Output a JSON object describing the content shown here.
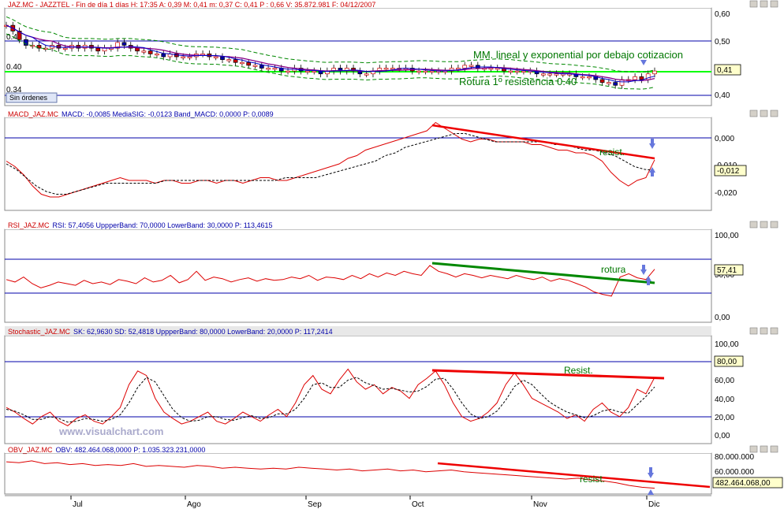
{
  "colors": {
    "price_line": "#00ff00",
    "level_line": "#0000aa",
    "macd": "#dd0000",
    "signal": "#000000",
    "trend_red": "#ee0000",
    "trend_green": "#008800",
    "annotation_green": "#007700",
    "arrow_blue": "#6677dd",
    "header_red": "#cc0000",
    "header_blue": "#0000aa",
    "watermark": "#aaaacc"
  },
  "panels": {
    "price": {
      "header": "JAZ.MC - JAZZTEL - Fin de día 1 días  H: 17:35  A: 0,39  M: 0,41  m: 0,37  C: 0,41  P : 0,66  V: 35.872.981  F: 04/12/2007",
      "ticks": [
        "0,60",
        "0,50",
        "0,40"
      ],
      "left_labels": [
        "0.49",
        "0.40",
        "0.34"
      ],
      "box": "Sin órdenes",
      "value_box": "0,41",
      "ann1": "MM. lineal y exponential por debajo cotizacion",
      "ann2": "Rotura 1º resistencia 0.40"
    },
    "macd": {
      "header_name": "MACD_JAZ.MC",
      "header_vals": "MACD: -0,0085  MediaSIG: -0,0123  Band_MACD: 0,0000  P: 0,0089",
      "ticks": [
        "0,000",
        "-0,010",
        "-0,020"
      ],
      "value_box": "-0,012",
      "ann": "resist."
    },
    "rsi": {
      "header_name": "RSI_JAZ.MC",
      "header_vals": "RSI: 57,4056  UppperBand: 70,0000  LowerBand: 30,0000  P: 113,4615",
      "ticks": [
        "100,00",
        "50,00",
        "0,00"
      ],
      "value_box": "57,41",
      "ann": "rotura"
    },
    "stoch": {
      "header_name": "Stochastic_JAZ.MC",
      "header_vals": "SK: 62,9630  SD: 52,4818  UppperBand: 80,0000  LowerBand: 20,0000  P: 117,2414",
      "ticks": [
        "100,00",
        "80,00",
        "60,00",
        "40,00",
        "20,00",
        "0,00"
      ],
      "value_box": "80,00",
      "ann": "Resist.",
      "watermark": "www.visualchart.com"
    },
    "obv": {
      "header_name": "OBV_JAZ.MC",
      "header_vals": "OBV: 482.464.068,0000  P: 1.035.323.231,0000",
      "ticks": [
        "80.000.000",
        "60.000.000"
      ],
      "value_box": "482.464.068,00",
      "ann": "resist."
    }
  },
  "x_axis": {
    "months": [
      "Jul",
      "Ago",
      "Sep",
      "Oct",
      "Nov",
      "Dic"
    ]
  },
  "chart_data": {
    "type": "line",
    "title": "JAZ.MC - JAZZTEL",
    "x_months": [
      "Jul",
      "Ago",
      "Sep",
      "Oct",
      "Nov",
      "Dic"
    ],
    "price": {
      "ylim": [
        0.3,
        0.62
      ],
      "last_close": 0.41,
      "closes": [
        0.57,
        0.55,
        0.52,
        0.5,
        0.5,
        0.49,
        0.49,
        0.5,
        0.49,
        0.49,
        0.5,
        0.49,
        0.5,
        0.49,
        0.48,
        0.49,
        0.49,
        0.51,
        0.5,
        0.49,
        0.48,
        0.48,
        0.47,
        0.47,
        0.46,
        0.47,
        0.46,
        0.46,
        0.46,
        0.47,
        0.47,
        0.46,
        0.46,
        0.45,
        0.45,
        0.44,
        0.44,
        0.43,
        0.43,
        0.42,
        0.42,
        0.42,
        0.41,
        0.41,
        0.42,
        0.41,
        0.41,
        0.41,
        0.4,
        0.41,
        0.42,
        0.41,
        0.42,
        0.41,
        0.4,
        0.4,
        0.41,
        0.42,
        0.42,
        0.42,
        0.42,
        0.42,
        0.41,
        0.41,
        0.41,
        0.41,
        0.41,
        0.41,
        0.42,
        0.42,
        0.43,
        0.43,
        0.42,
        0.42,
        0.42,
        0.42,
        0.41,
        0.41,
        0.41,
        0.41,
        0.41,
        0.4,
        0.4,
        0.4,
        0.4,
        0.4,
        0.4,
        0.39,
        0.39,
        0.39,
        0.38,
        0.37,
        0.37,
        0.36,
        0.38,
        0.38,
        0.39,
        0.38,
        0.4,
        0.41
      ],
      "resistance_lines": [
        0.49,
        0.4,
        0.34
      ]
    },
    "macd": {
      "ylim": [
        -0.026,
        0.006
      ],
      "bands": [
        0.0
      ],
      "macd": [
        -0.009,
        -0.011,
        -0.014,
        -0.018,
        -0.021,
        -0.022,
        -0.022,
        -0.021,
        -0.02,
        -0.019,
        -0.018,
        -0.017,
        -0.016,
        -0.015,
        -0.016,
        -0.016,
        -0.016,
        -0.017,
        -0.016,
        -0.016,
        -0.017,
        -0.017,
        -0.016,
        -0.016,
        -0.017,
        -0.016,
        -0.016,
        -0.017,
        -0.016,
        -0.015,
        -0.015,
        -0.016,
        -0.016,
        -0.015,
        -0.014,
        -0.013,
        -0.012,
        -0.011,
        -0.01,
        -0.008,
        -0.007,
        -0.005,
        -0.004,
        -0.003,
        -0.002,
        -0.001,
        0.0,
        0.001,
        0.002,
        0.005,
        0.003,
        0.001,
        -0.001,
        -0.002,
        -0.001,
        -0.001,
        -0.002,
        -0.002,
        -0.002,
        -0.002,
        -0.003,
        -0.003,
        -0.004,
        -0.005,
        -0.005,
        -0.006,
        -0.006,
        -0.007,
        -0.009,
        -0.013,
        -0.016,
        -0.018,
        -0.016,
        -0.015,
        -0.0085
      ],
      "signal": [
        -0.01,
        -0.012,
        -0.015,
        -0.018,
        -0.02,
        -0.021,
        -0.021,
        -0.02,
        -0.019,
        -0.018,
        -0.017,
        -0.017,
        -0.017,
        -0.017,
        -0.017,
        -0.017,
        -0.016,
        -0.016,
        -0.016,
        -0.016,
        -0.016,
        -0.016,
        -0.016,
        -0.016,
        -0.016,
        -0.016,
        -0.016,
        -0.016,
        -0.015,
        -0.015,
        -0.015,
        -0.015,
        -0.014,
        -0.013,
        -0.012,
        -0.011,
        -0.01,
        -0.009,
        -0.007,
        -0.006,
        -0.004,
        -0.003,
        -0.002,
        -0.001,
        0.0,
        0.001,
        0.001,
        0.0,
        -0.001,
        -0.002,
        -0.002,
        -0.002,
        -0.002,
        -0.002,
        -0.002,
        -0.003,
        -0.003,
        -0.004,
        -0.005,
        -0.005,
        -0.006,
        -0.007,
        -0.009,
        -0.011,
        -0.012,
        -0.0123
      ]
    },
    "rsi": {
      "ylim": [
        0,
        100
      ],
      "bands": [
        70,
        30
      ],
      "values": [
        45,
        42,
        48,
        40,
        35,
        38,
        42,
        40,
        38,
        44,
        40,
        42,
        39,
        45,
        43,
        40,
        47,
        42,
        44,
        50,
        41,
        45,
        55,
        44,
        48,
        46,
        42,
        45,
        47,
        43,
        46,
        44,
        45,
        48,
        46,
        50,
        44,
        48,
        47,
        45,
        50,
        46,
        52,
        48,
        53,
        50,
        55,
        52,
        50,
        62,
        55,
        52,
        48,
        52,
        50,
        47,
        50,
        48,
        46,
        50,
        47,
        45,
        48,
        43,
        46,
        44,
        40,
        36,
        30,
        27,
        25,
        48,
        52,
        47,
        45,
        57.4
      ]
    },
    "stochastic": {
      "ylim": [
        0,
        100
      ],
      "bands": [
        80,
        20
      ],
      "sk": [
        30,
        25,
        18,
        12,
        20,
        25,
        15,
        10,
        18,
        22,
        15,
        12,
        20,
        30,
        55,
        70,
        65,
        40,
        25,
        18,
        12,
        15,
        20,
        25,
        15,
        12,
        18,
        25,
        20,
        15,
        22,
        28,
        20,
        35,
        55,
        65,
        50,
        45,
        60,
        72,
        58,
        50,
        55,
        45,
        52,
        48,
        40,
        55,
        62,
        70,
        55,
        35,
        20,
        15,
        18,
        25,
        35,
        55,
        68,
        55,
        40,
        35,
        30,
        25,
        18,
        22,
        15,
        28,
        35,
        25,
        20,
        30,
        50,
        45,
        62.96
      ],
      "sd": [
        28,
        26,
        22,
        17,
        17,
        20,
        18,
        14,
        15,
        18,
        17,
        15,
        17,
        22,
        35,
        52,
        63,
        58,
        43,
        28,
        19,
        15,
        16,
        20,
        20,
        17,
        16,
        19,
        21,
        18,
        19,
        23,
        23,
        28,
        40,
        55,
        57,
        52,
        52,
        60,
        63,
        57,
        54,
        50,
        51,
        49,
        47,
        48,
        53,
        61,
        62,
        50,
        35,
        23,
        18,
        20,
        26,
        38,
        53,
        60,
        55,
        45,
        36,
        30,
        25,
        22,
        19,
        21,
        26,
        28,
        25,
        24,
        33,
        42,
        52.48
      ]
    },
    "obv": {
      "ylim": [
        40000000,
        85000000
      ],
      "last": 482464068
    }
  }
}
